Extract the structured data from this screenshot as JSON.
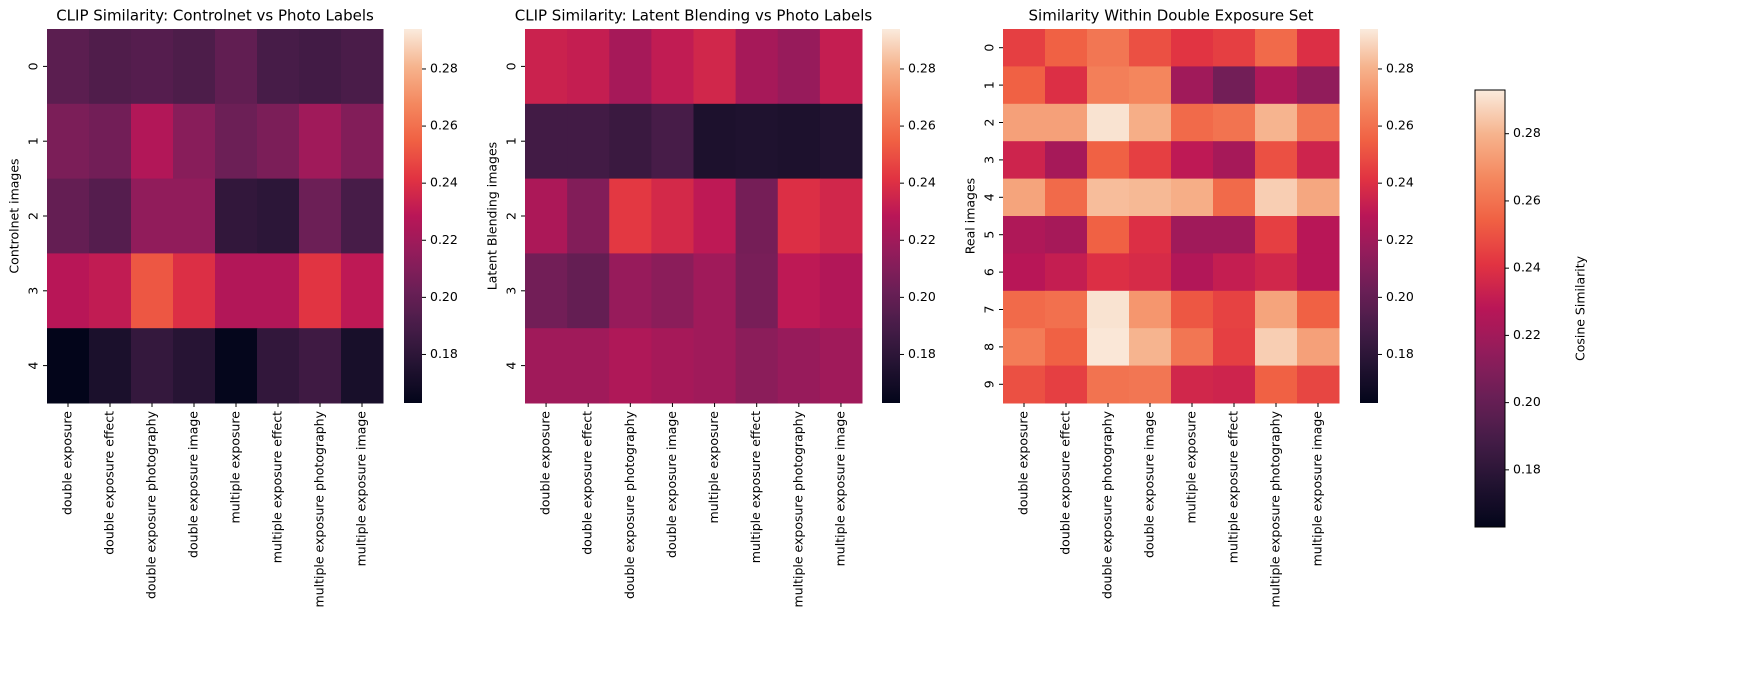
{
  "chart_data": [
    {
      "type": "heatmap",
      "title": "CLIP Similarity: Controlnet vs Photo Labels",
      "ylabel": "Controlnet images",
      "colormap": "rocket",
      "categories": [
        "double exposure",
        "double exposure effect",
        "double exposure photography",
        "double exposure image",
        "multiple exposure",
        "multiple exposure effect",
        "multiple exposure photography",
        "multiple exposure image"
      ],
      "rows": [
        "0",
        "1",
        "2",
        "3",
        "4"
      ],
      "values": [
        [
          0.197,
          0.193,
          0.195,
          0.192,
          0.199,
          0.19,
          0.188,
          0.191
        ],
        [
          0.208,
          0.205,
          0.226,
          0.212,
          0.203,
          0.208,
          0.22,
          0.21
        ],
        [
          0.2,
          0.195,
          0.215,
          0.215,
          0.182,
          0.18,
          0.203,
          0.19
        ],
        [
          0.228,
          0.231,
          0.252,
          0.24,
          0.226,
          0.226,
          0.242,
          0.23
        ],
        [
          0.163,
          0.173,
          0.183,
          0.178,
          0.164,
          0.182,
          0.187,
          0.172
        ]
      ],
      "clim": [
        0.163,
        0.294
      ],
      "cticks": [
        0.18,
        {
          "value": 0.2,
          "label": "0.20"
        },
        0.22,
        0.24,
        0.26,
        0.28
      ]
    },
    {
      "type": "heatmap",
      "title": "CLIP Similarity: Latent Blending vs Photo Labels",
      "ylabel": "Latent Blending images",
      "colormap": "rocket",
      "categories": [
        "double exposure",
        "double exposure effect",
        "double exposure photography",
        "double exposure image",
        "multiple exposure",
        "multiple exposure effect",
        "multiple exposure photography",
        "multiple exposure image"
      ],
      "rows": [
        "0",
        "1",
        "2",
        "3",
        "4"
      ],
      "values": [
        [
          0.234,
          0.232,
          0.222,
          0.231,
          0.236,
          0.222,
          0.217,
          0.232
        ],
        [
          0.188,
          0.188,
          0.185,
          0.19,
          0.174,
          0.175,
          0.174,
          0.176
        ],
        [
          0.224,
          0.21,
          0.243,
          0.237,
          0.23,
          0.206,
          0.24,
          0.236
        ],
        [
          0.205,
          0.2,
          0.217,
          0.213,
          0.22,
          0.207,
          0.23,
          0.226
        ],
        [
          0.22,
          0.22,
          0.225,
          0.222,
          0.22,
          0.213,
          0.217,
          0.22
        ]
      ],
      "clim": [
        0.163,
        0.294
      ],
      "cticks": [
        0.18,
        {
          "value": 0.2,
          "label": "0.20"
        },
        0.22,
        0.24,
        0.26,
        0.28
      ]
    },
    {
      "type": "heatmap",
      "title": "Similarity Within Double Exposure Set",
      "ylabel": "Real images",
      "colormap": "rocket",
      "categories": [
        "double exposure",
        "double exposure effect",
        "double exposure photography",
        "double exposure image",
        "multiple exposure",
        "multiple exposure effect",
        "multiple exposure photography",
        "multiple exposure image"
      ],
      "rows": [
        "0",
        "1",
        "2",
        "3",
        "4",
        "5",
        "6",
        "7",
        "8",
        "9"
      ],
      "values": [
        [
          0.245,
          0.255,
          0.262,
          0.25,
          0.242,
          0.245,
          0.258,
          0.24
        ],
        [
          0.255,
          0.24,
          0.265,
          0.267,
          0.22,
          0.205,
          0.225,
          0.215
        ],
        [
          0.275,
          0.275,
          0.292,
          0.279,
          0.258,
          0.261,
          0.281,
          0.262
        ],
        [
          0.235,
          0.222,
          0.255,
          0.245,
          0.23,
          0.222,
          0.25,
          0.235
        ],
        [
          0.276,
          0.258,
          0.283,
          0.282,
          0.279,
          0.258,
          0.287,
          0.277
        ],
        [
          0.225,
          0.222,
          0.255,
          0.24,
          0.22,
          0.22,
          0.245,
          0.228
        ],
        [
          0.228,
          0.232,
          0.24,
          0.238,
          0.226,
          0.232,
          0.236,
          0.228
        ],
        [
          0.258,
          0.26,
          0.292,
          0.272,
          0.252,
          0.246,
          0.276,
          0.255
        ],
        [
          0.264,
          0.255,
          0.293,
          0.281,
          0.262,
          0.245,
          0.287,
          0.275
        ],
        [
          0.25,
          0.245,
          0.261,
          0.262,
          0.236,
          0.235,
          0.255,
          0.247
        ]
      ],
      "clim": [
        0.163,
        0.294
      ],
      "cticks": [
        0.18,
        {
          "value": 0.2,
          "label": "0.20"
        },
        0.22,
        0.24,
        0.26,
        0.28
      ]
    },
    {
      "type": "colorbar",
      "label": "Cosine Similarity",
      "colormap": "rocket",
      "clim": [
        0.163,
        0.293
      ],
      "cticks": [
        0.18,
        {
          "value": 0.2,
          "label": "0.20"
        },
        0.22,
        0.24,
        0.26,
        0.28
      ]
    }
  ]
}
